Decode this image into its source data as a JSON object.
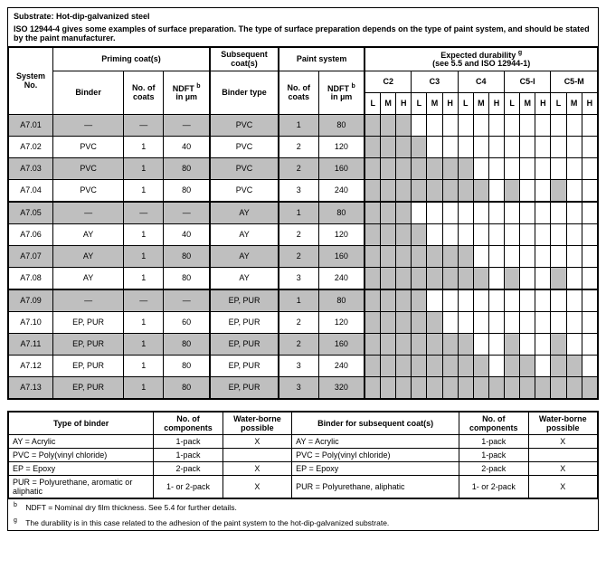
{
  "header": {
    "substrate_label": "Substrate: Hot-dip-galvanized steel",
    "iso_text": "ISO 12944-4 gives some examples of surface preparation. The type of surface preparation depends on the type of paint system, and should be stated by the paint manufacturer."
  },
  "columns": {
    "system_no": "System No.",
    "priming": "Priming coat(s)",
    "subsequent": "Subsequent coat(s)",
    "paint_system": "Paint system",
    "expected_line1": "Expected durability ",
    "expected_sup": "g",
    "expected_line2": "(see 5.5 and ISO 12944-1)",
    "binder": "Binder",
    "no_of_coats": "No. of coats",
    "ndft_line1": "NDFT ",
    "ndft_sup": "b",
    "ndft_line2": "in µm",
    "binder_type": "Binder type",
    "c2": "C2",
    "c3": "C3",
    "c4": "C4",
    "c5i": "C5-I",
    "c5m": "C5-M",
    "L": "L",
    "M": "M",
    "H": "H"
  },
  "dash": "—",
  "rows": [
    {
      "id": "A7.01",
      "p_binder": "—",
      "p_coats": "—",
      "p_ndft": "—",
      "s_binder": "PVC",
      "ps_coats": "1",
      "ps_ndft": "80",
      "shade": true,
      "d": [
        1,
        1,
        1,
        0,
        0,
        0,
        0,
        0,
        0,
        0,
        0,
        0,
        0,
        0,
        0
      ]
    },
    {
      "id": "A7.02",
      "p_binder": "PVC",
      "p_coats": "1",
      "p_ndft": "40",
      "s_binder": "PVC",
      "ps_coats": "2",
      "ps_ndft": "120",
      "shade": false,
      "d": [
        1,
        1,
        1,
        1,
        0,
        0,
        0,
        0,
        0,
        0,
        0,
        0,
        0,
        0,
        0
      ]
    },
    {
      "id": "A7.03",
      "p_binder": "PVC",
      "p_coats": "1",
      "p_ndft": "80",
      "s_binder": "PVC",
      "ps_coats": "2",
      "ps_ndft": "160",
      "shade": true,
      "d": [
        1,
        1,
        1,
        1,
        1,
        1,
        1,
        0,
        0,
        0,
        0,
        0,
        0,
        0,
        0
      ]
    },
    {
      "id": "A7.04",
      "p_binder": "PVC",
      "p_coats": "1",
      "p_ndft": "80",
      "s_binder": "PVC",
      "ps_coats": "3",
      "ps_ndft": "240",
      "shade": false,
      "d": [
        1,
        1,
        1,
        1,
        1,
        1,
        1,
        1,
        0,
        1,
        0,
        0,
        1,
        0,
        0
      ]
    },
    {
      "id": "A7.05",
      "p_binder": "—",
      "p_coats": "—",
      "p_ndft": "—",
      "s_binder": "AY",
      "ps_coats": "1",
      "ps_ndft": "80",
      "shade": true,
      "d": [
        1,
        1,
        1,
        0,
        0,
        0,
        0,
        0,
        0,
        0,
        0,
        0,
        0,
        0,
        0
      ]
    },
    {
      "id": "A7.06",
      "p_binder": "AY",
      "p_coats": "1",
      "p_ndft": "40",
      "s_binder": "AY",
      "ps_coats": "2",
      "ps_ndft": "120",
      "shade": false,
      "d": [
        1,
        1,
        1,
        1,
        0,
        0,
        0,
        0,
        0,
        0,
        0,
        0,
        0,
        0,
        0
      ]
    },
    {
      "id": "A7.07",
      "p_binder": "AY",
      "p_coats": "1",
      "p_ndft": "80",
      "s_binder": "AY",
      "ps_coats": "2",
      "ps_ndft": "160",
      "shade": true,
      "d": [
        1,
        1,
        1,
        1,
        1,
        1,
        1,
        0,
        0,
        0,
        0,
        0,
        0,
        0,
        0
      ]
    },
    {
      "id": "A7.08",
      "p_binder": "AY",
      "p_coats": "1",
      "p_ndft": "80",
      "s_binder": "AY",
      "ps_coats": "3",
      "ps_ndft": "240",
      "shade": false,
      "d": [
        1,
        1,
        1,
        1,
        1,
        1,
        1,
        1,
        0,
        1,
        0,
        0,
        1,
        0,
        0
      ]
    },
    {
      "id": "A7.09",
      "p_binder": "—",
      "p_coats": "—",
      "p_ndft": "—",
      "s_binder": "EP, PUR",
      "ps_coats": "1",
      "ps_ndft": "80",
      "shade": true,
      "d": [
        1,
        1,
        1,
        1,
        0,
        0,
        0,
        0,
        0,
        0,
        0,
        0,
        0,
        0,
        0
      ]
    },
    {
      "id": "A7.10",
      "p_binder": "EP, PUR",
      "p_coats": "1",
      "p_ndft": "60",
      "s_binder": "EP, PUR",
      "ps_coats": "2",
      "ps_ndft": "120",
      "shade": false,
      "d": [
        1,
        1,
        1,
        1,
        1,
        0,
        0,
        0,
        0,
        0,
        0,
        0,
        0,
        0,
        0
      ]
    },
    {
      "id": "A7.11",
      "p_binder": "EP, PUR",
      "p_coats": "1",
      "p_ndft": "80",
      "s_binder": "EP, PUR",
      "ps_coats": "2",
      "ps_ndft": "160",
      "shade": true,
      "d": [
        1,
        1,
        1,
        1,
        1,
        1,
        1,
        0,
        0,
        1,
        0,
        0,
        1,
        0,
        0
      ]
    },
    {
      "id": "A7.12",
      "p_binder": "EP, PUR",
      "p_coats": "1",
      "p_ndft": "80",
      "s_binder": "EP, PUR",
      "ps_coats": "3",
      "ps_ndft": "240",
      "shade": false,
      "d": [
        1,
        1,
        1,
        1,
        1,
        1,
        1,
        1,
        0,
        1,
        1,
        0,
        1,
        1,
        0
      ]
    },
    {
      "id": "A7.13",
      "p_binder": "EP, PUR",
      "p_coats": "1",
      "p_ndft": "80",
      "s_binder": "EP, PUR",
      "ps_coats": "3",
      "ps_ndft": "320",
      "shade": true,
      "d": [
        1,
        1,
        1,
        1,
        1,
        1,
        1,
        1,
        1,
        1,
        1,
        1,
        1,
        1,
        1
      ]
    }
  ],
  "legend": {
    "cols": {
      "type_binder": "Type of binder",
      "no_comp": "No. of components",
      "water": "Water-borne possible",
      "binder_sub": "Binder for subsequent coat(s)"
    },
    "rows_left": [
      {
        "name": "AY = Acrylic",
        "comp": "1-pack",
        "water": "X"
      },
      {
        "name": "PVC = Poly(vinyl chloride)",
        "comp": "1-pack",
        "water": ""
      },
      {
        "name": "EP = Epoxy",
        "comp": "2-pack",
        "water": "X"
      },
      {
        "name": "PUR = Polyurethane, aromatic or aliphatic",
        "comp": "1- or 2-pack",
        "water": "X"
      }
    ],
    "rows_right": [
      {
        "name": "AY = Acrylic",
        "comp": "1-pack",
        "water": "X"
      },
      {
        "name": "PVC = Poly(vinyl chloride)",
        "comp": "1-pack",
        "water": ""
      },
      {
        "name": "EP = Epoxy",
        "comp": "2-pack",
        "water": "X"
      },
      {
        "name": "PUR = Polyurethane, aliphatic",
        "comp": "1- or 2-pack",
        "water": "X"
      }
    ]
  },
  "notes": {
    "b_sup": "b",
    "b_text": "NDFT = Nominal dry film thickness. See 5.4 for further details.",
    "g_sup": "g",
    "g_text": "The durability is in this case related to the adhesion of the paint system to the hot-dip-galvanized substrate."
  },
  "style": {
    "shade_color": "#bfbfbf",
    "dur_cell_w": 14
  }
}
